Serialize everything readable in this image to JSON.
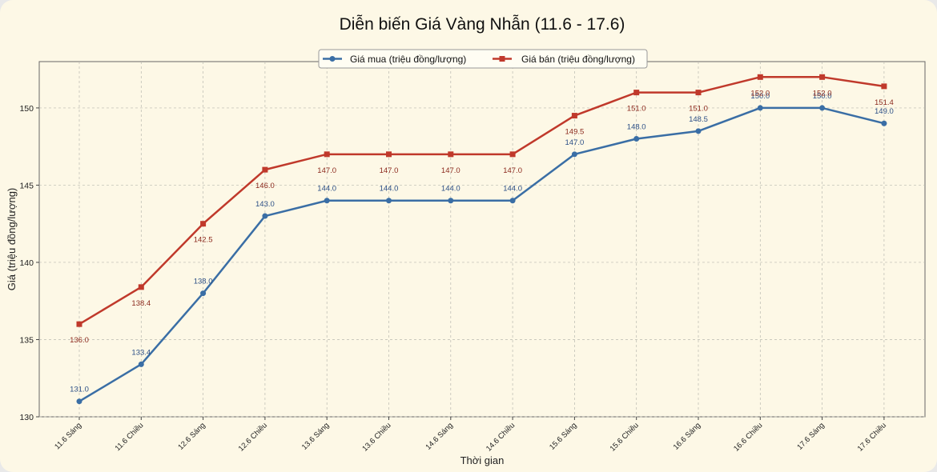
{
  "chart_data": {
    "type": "line",
    "title": "Diễn biến Giá Vàng Nhẫn (11.6 - 17.6)",
    "xlabel": "Thời gian",
    "ylabel": "Giá (triệu đồng/lượng)",
    "categories": [
      "11.6 Sáng",
      "11.6 Chiều",
      "12.6 Sáng",
      "12.6 Chiều",
      "13.6 Sáng",
      "13.6 Chiều",
      "14.6 Sáng",
      "14.6 Chiều",
      "15.6 Sáng",
      "15.6 Chiều",
      "16.6 Sáng",
      "16.6 Chiều",
      "17.6 Sáng",
      "17.6 Chiều"
    ],
    "ylim": [
      130,
      153
    ],
    "yticks": [
      130,
      135,
      140,
      145,
      150
    ],
    "grid": true,
    "legend_position": "top-center",
    "series": [
      {
        "name": "Giá mua (triệu đồng/lượng)",
        "color": "#3a6ea5",
        "marker": "circle",
        "values": [
          131.0,
          133.4,
          138.0,
          143.0,
          144.0,
          144.0,
          144.0,
          144.0,
          147.0,
          148.0,
          148.5,
          150.0,
          150.0,
          149.0
        ],
        "labels": [
          "131.0",
          "133.4",
          "138.0",
          "143.0",
          "144.0",
          "144.0",
          "144.0",
          "144.0",
          "147.0",
          "148.0",
          "148.5",
          "150.0",
          "150.0",
          "149.0"
        ]
      },
      {
        "name": "Giá bán (triệu đồng/lượng)",
        "color": "#c0392b",
        "marker": "square",
        "values": [
          136.0,
          138.4,
          142.5,
          146.0,
          147.0,
          147.0,
          147.0,
          147.0,
          149.5,
          151.0,
          151.0,
          152.0,
          152.0,
          151.4
        ],
        "labels": [
          "136.0",
          "138.4",
          "142.5",
          "146.0",
          "147.0",
          "147.0",
          "147.0",
          "147.0",
          "149.5",
          "151.0",
          "151.0",
          "152.0",
          "152.0",
          "151.4"
        ]
      }
    ]
  }
}
